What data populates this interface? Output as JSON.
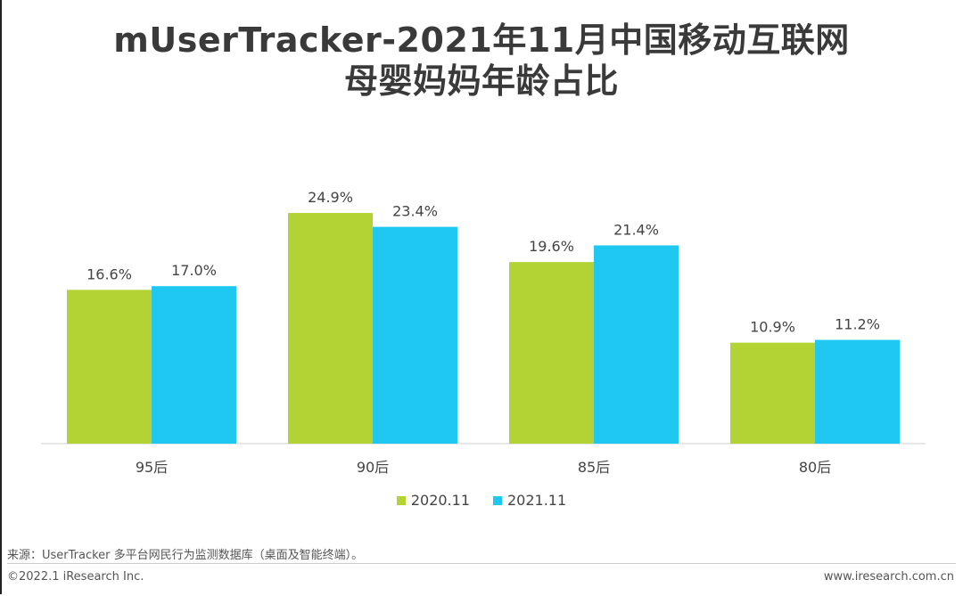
{
  "header": {
    "title_line1": "mUserTracker-2021年11月中国移动互联网",
    "title_line2": "母婴妈妈年龄占比"
  },
  "chart_data": {
    "type": "bar",
    "categories": [
      "95后",
      "90后",
      "85后",
      "80后"
    ],
    "series": [
      {
        "name": "2020.11",
        "values": [
          16.6,
          24.9,
          19.6,
          10.9
        ],
        "labels": [
          "16.6%",
          "24.9%",
          "19.6%",
          "10.9%"
        ],
        "color": "#b3d334"
      },
      {
        "name": "2021.11",
        "values": [
          17.0,
          23.4,
          21.4,
          11.2
        ],
        "labels": [
          "17.0%",
          "23.4%",
          "21.4%",
          "11.2%"
        ],
        "color": "#1ec8f0"
      }
    ],
    "ylim": [
      0,
      25
    ],
    "grid": false,
    "legend_position": "bottom"
  },
  "footer": {
    "source": "来源：UserTracker 多平台网民行为监测数据库（桌面及智能终端）。",
    "copyright": "©2022.1 iResearch Inc.",
    "website": "www.iresearch.com.cn"
  }
}
